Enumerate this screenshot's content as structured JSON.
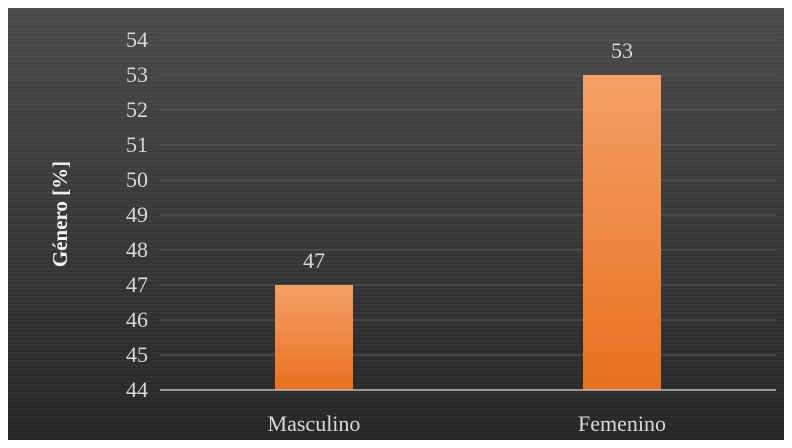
{
  "chart_data": {
    "type": "bar",
    "categories": [
      "Masculino",
      "Femenino"
    ],
    "values": [
      47,
      53
    ],
    "title": "",
    "xlabel": "",
    "ylabel": "Género [%]",
    "ylim": [
      44,
      54
    ],
    "yticks": [
      44,
      45,
      46,
      47,
      48,
      49,
      50,
      51,
      52,
      53,
      54
    ],
    "data_labels": [
      "47",
      "53"
    ],
    "grid": true,
    "legend": "none"
  },
  "colors": {
    "background_top": "#4a4a4a",
    "background_bottom": "#262626",
    "bar_top": "#f4a067",
    "bar_bottom": "#e8711f",
    "gridline": "#5a5a5a",
    "axis_line": "#bfbfbf",
    "text": "#d9d9d9"
  }
}
